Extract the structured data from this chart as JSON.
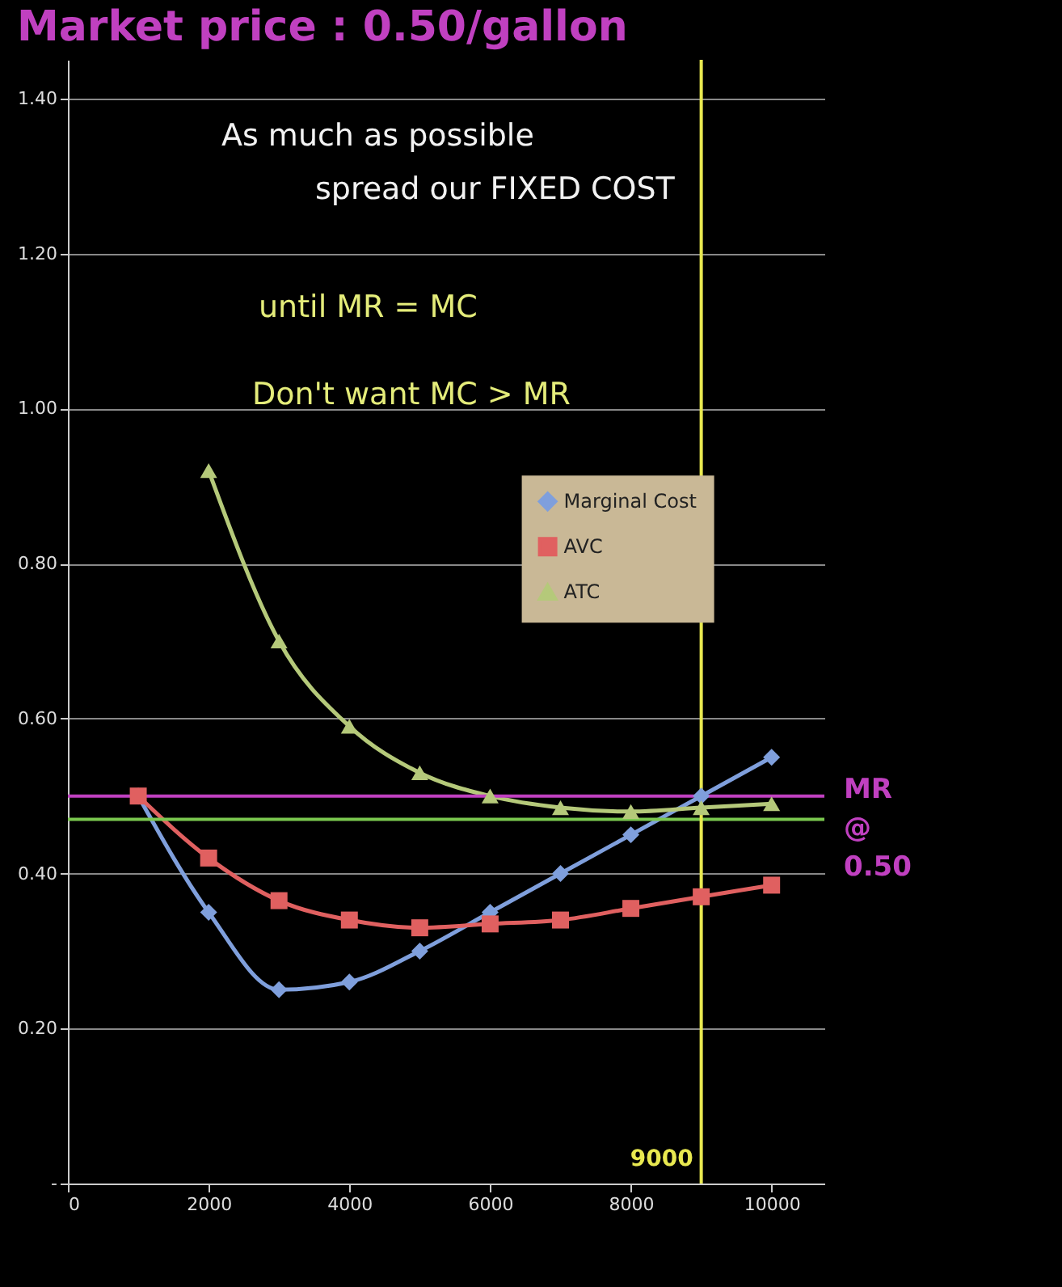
{
  "chart_data": {
    "type": "line",
    "title": "Market price : 0.50/gallon",
    "x": [
      1000,
      2000,
      3000,
      4000,
      5000,
      6000,
      7000,
      8000,
      9000,
      10000
    ],
    "series": [
      {
        "name": "Marginal Cost",
        "color": "#7f9fdc",
        "marker": "diamond",
        "values": [
          0.5,
          0.35,
          0.25,
          0.26,
          0.3,
          0.35,
          0.4,
          0.45,
          0.5,
          0.55
        ]
      },
      {
        "name": "AVC",
        "color": "#e06060",
        "marker": "square",
        "values": [
          0.5,
          0.42,
          0.365,
          0.34,
          0.33,
          0.335,
          0.34,
          0.355,
          0.37,
          0.385
        ]
      },
      {
        "name": "ATC",
        "color": "#b5c97a",
        "marker": "triangle",
        "values": [
          null,
          0.92,
          0.7,
          0.59,
          0.53,
          0.5,
          0.485,
          0.48,
          0.485,
          0.49
        ]
      }
    ],
    "xlim": [
      0,
      10750
    ],
    "xticks": [
      0,
      2000,
      4000,
      6000,
      8000,
      10000
    ],
    "ylim": [
      0,
      1.45
    ],
    "yticks": [
      {
        "value": 0,
        "label": "-"
      },
      {
        "value": 0.2,
        "label": "0.20"
      },
      {
        "value": 0.4,
        "label": "0.40"
      },
      {
        "value": 0.6,
        "label": "0.60"
      },
      {
        "value": 0.8,
        "label": "0.80"
      },
      {
        "value": 1.0,
        "label": "1.00"
      },
      {
        "value": 1.2,
        "label": "1.20"
      },
      {
        "value": 1.4,
        "label": "1.40"
      }
    ],
    "grid": "y",
    "legend": "top right",
    "line_style": "solid",
    "ref_lines": [
      {
        "axis": "y",
        "value": 0.5,
        "label": "MR @ 0.50",
        "color": "#c040c0"
      },
      {
        "axis": "y",
        "value": 0.47,
        "label": null,
        "color": "#7ac74f"
      },
      {
        "axis": "x",
        "value": 9000,
        "label": "9000",
        "color": "#e8e850"
      }
    ],
    "annotations": [
      "As much as possible",
      "spread our FIXED COST",
      "until MR = MC",
      "Don't want MC > MR"
    ]
  }
}
